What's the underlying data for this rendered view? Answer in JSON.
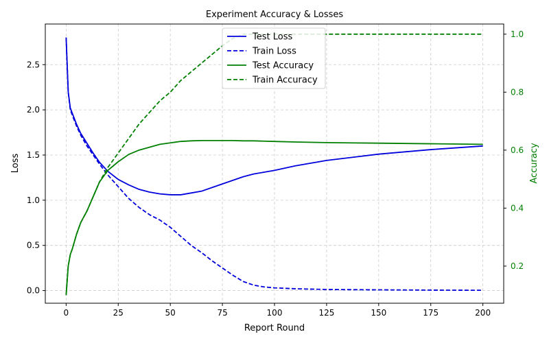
{
  "chart_data": {
    "type": "line",
    "title": "Experiment Accuracy & Losses",
    "xlabel": "Report Round",
    "ylabel_left": "Loss",
    "ylabel_right": "Accuracy",
    "xlim": [
      -10,
      210
    ],
    "ylim_left": [
      -0.14,
      2.95
    ],
    "ylim_right": [
      0.072,
      1.035
    ],
    "x_ticks": [
      0,
      25,
      50,
      75,
      100,
      125,
      150,
      175,
      200
    ],
    "y_ticks_left": [
      0.0,
      0.5,
      1.0,
      1.5,
      2.0,
      2.5
    ],
    "y_ticks_right": [
      0.2,
      0.4,
      0.6,
      0.8,
      1.0
    ],
    "grid": true,
    "legend_position": "top-center",
    "colors": {
      "loss": "#0000dd",
      "accuracy": "#007f00",
      "grid": "#cccccc"
    },
    "series": [
      {
        "name": "Test Loss",
        "axis": "left",
        "color": "#0000dd",
        "style": "solid",
        "x": [
          0,
          1,
          2,
          3,
          5,
          7,
          10,
          13,
          16,
          20,
          25,
          30,
          35,
          40,
          45,
          50,
          55,
          60,
          65,
          70,
          75,
          80,
          85,
          90,
          95,
          100,
          110,
          125,
          150,
          175,
          200
        ],
        "values": [
          2.8,
          2.2,
          2.02,
          1.96,
          1.84,
          1.74,
          1.63,
          1.52,
          1.42,
          1.32,
          1.23,
          1.17,
          1.12,
          1.09,
          1.07,
          1.06,
          1.06,
          1.08,
          1.1,
          1.14,
          1.18,
          1.22,
          1.26,
          1.29,
          1.31,
          1.33,
          1.38,
          1.44,
          1.51,
          1.56,
          1.6
        ]
      },
      {
        "name": "Train Loss",
        "axis": "left",
        "color": "#0000dd",
        "style": "dashed",
        "x": [
          0,
          1,
          2,
          3,
          5,
          7,
          10,
          13,
          16,
          20,
          25,
          30,
          35,
          40,
          45,
          50,
          55,
          60,
          65,
          70,
          75,
          80,
          85,
          90,
          95,
          100,
          110,
          125,
          150,
          175,
          200
        ],
        "values": [
          2.8,
          2.2,
          2.0,
          1.94,
          1.82,
          1.72,
          1.6,
          1.5,
          1.4,
          1.28,
          1.15,
          1.02,
          0.92,
          0.84,
          0.78,
          0.7,
          0.6,
          0.5,
          0.42,
          0.33,
          0.25,
          0.17,
          0.1,
          0.06,
          0.04,
          0.03,
          0.02,
          0.012,
          0.008,
          0.005,
          0.003
        ]
      },
      {
        "name": "Test Accuracy",
        "axis": "right",
        "color": "#007f00",
        "style": "solid",
        "x": [
          0,
          1,
          2,
          3,
          5,
          7,
          10,
          13,
          16,
          20,
          25,
          30,
          35,
          40,
          45,
          50,
          55,
          60,
          65,
          70,
          75,
          80,
          85,
          90,
          95,
          100,
          110,
          125,
          150,
          175,
          200
        ],
        "values": [
          0.1,
          0.2,
          0.24,
          0.26,
          0.31,
          0.35,
          0.39,
          0.44,
          0.49,
          0.53,
          0.56,
          0.585,
          0.6,
          0.61,
          0.62,
          0.625,
          0.63,
          0.632,
          0.633,
          0.633,
          0.633,
          0.633,
          0.632,
          0.632,
          0.631,
          0.63,
          0.628,
          0.626,
          0.624,
          0.622,
          0.62
        ]
      },
      {
        "name": "Train Accuracy",
        "axis": "right",
        "color": "#007f00",
        "style": "dashed",
        "x": [
          0,
          1,
          2,
          3,
          5,
          7,
          10,
          13,
          16,
          20,
          25,
          30,
          35,
          40,
          45,
          50,
          55,
          60,
          65,
          70,
          75,
          80,
          85,
          88,
          90,
          100,
          125,
          150,
          175,
          200
        ],
        "values": [
          0.1,
          0.2,
          0.24,
          0.26,
          0.31,
          0.35,
          0.39,
          0.44,
          0.49,
          0.54,
          0.59,
          0.64,
          0.69,
          0.73,
          0.77,
          0.8,
          0.84,
          0.87,
          0.9,
          0.93,
          0.96,
          0.985,
          1.0,
          1.0,
          1.0,
          1.0,
          1.0,
          1.0,
          1.0,
          1.0
        ]
      }
    ]
  }
}
